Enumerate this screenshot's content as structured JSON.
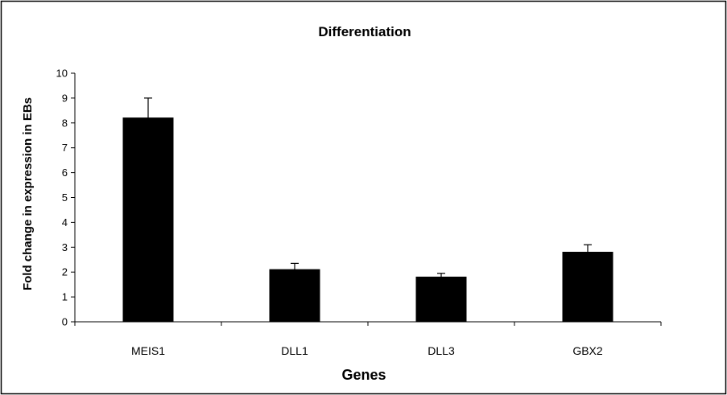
{
  "chart_data": {
    "type": "bar",
    "title": "Differentiation",
    "xlabel": "Genes",
    "ylabel": "Fold change in expression in EBs",
    "categories": [
      "MEIS1",
      "DLL1",
      "DLL3",
      "GBX2"
    ],
    "values": [
      8.2,
      2.1,
      1.8,
      2.8
    ],
    "error_plus": [
      0.8,
      0.25,
      0.15,
      0.3
    ],
    "ylim": [
      0,
      10
    ],
    "yticks": [
      "0",
      "1",
      "2",
      "3",
      "4",
      "5",
      "6",
      "7",
      "8",
      "9",
      "10"
    ],
    "bar_color": "#000000",
    "grid": false,
    "legend": "none"
  }
}
